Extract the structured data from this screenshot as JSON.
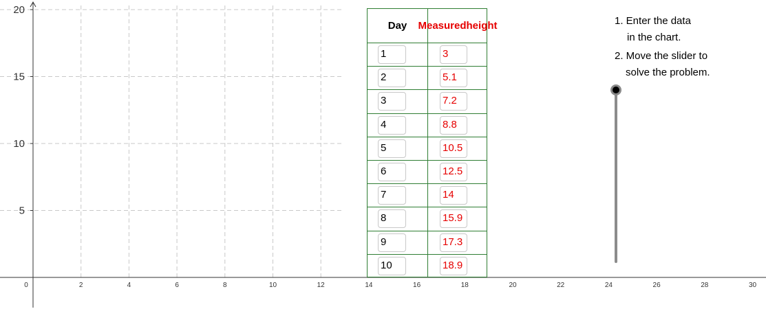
{
  "graph": {
    "x_ticks": [
      "0",
      "2",
      "4",
      "6",
      "8",
      "10",
      "12",
      "14",
      "16",
      "18",
      "20",
      "22",
      "24",
      "26",
      "28",
      "30"
    ],
    "y_ticks": [
      "20",
      "15",
      "10",
      "5"
    ],
    "x_range": [
      0,
      30
    ],
    "y_range": [
      0,
      20
    ],
    "grid": true,
    "faded_ticks_color": "#f3d7c8"
  },
  "table": {
    "header_day": "Day",
    "header_measured": "Measured height",
    "header_measured_line1": "Measured",
    "header_measured_line2": "height",
    "rows": [
      {
        "day": "1",
        "height": "3"
      },
      {
        "day": "2",
        "height": "5.1"
      },
      {
        "day": "3",
        "height": "7.2"
      },
      {
        "day": "4",
        "height": "8.8"
      },
      {
        "day": "5",
        "height": "10.5"
      },
      {
        "day": "6",
        "height": "12.5"
      },
      {
        "day": "7",
        "height": "14"
      },
      {
        "day": "8",
        "height": "15.9"
      },
      {
        "day": "9",
        "height": "17.3"
      },
      {
        "day": "10",
        "height": "18.9"
      }
    ]
  },
  "instructions": {
    "step1_line1": "1. Enter the data",
    "step1_line2": "in the chart.",
    "step2_line1": "2. Move the slider to",
    "step2_line2": "solve the problem."
  },
  "slider": {
    "value_fraction": 1.0
  },
  "colors": {
    "table_border": "#2e7d32",
    "measured_text": "#e60000",
    "grid": "#c8c8c8"
  }
}
